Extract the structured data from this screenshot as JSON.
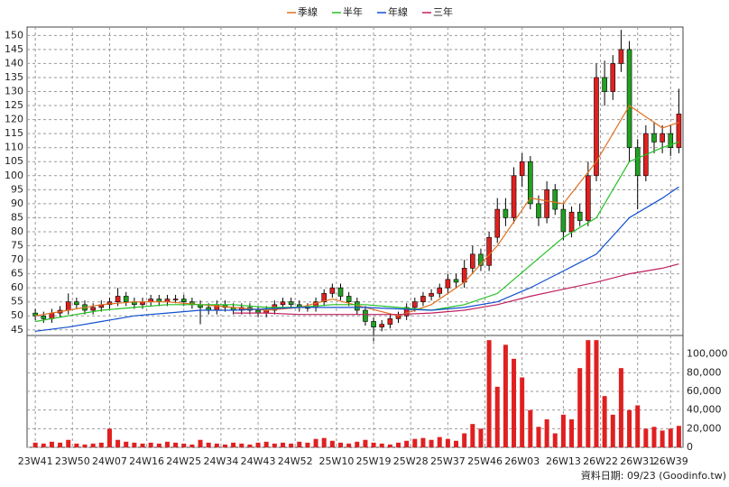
{
  "chart_data": [
    {
      "type": "candlestick",
      "up_color": "#e02020",
      "down_color": "#22a022",
      "ylim": [
        43,
        153
      ],
      "yticks": [
        45,
        50,
        55,
        60,
        65,
        70,
        75,
        80,
        85,
        90,
        95,
        100,
        105,
        110,
        115,
        120,
        125,
        130,
        135,
        140,
        145,
        150
      ],
      "grid": true,
      "legend": "top",
      "xlim": [
        -2,
        157
      ],
      "x": [
        0,
        2,
        4,
        6,
        8,
        10,
        12,
        14,
        16,
        18,
        20,
        22,
        24,
        26,
        28,
        30,
        32,
        34,
        36,
        38,
        40,
        42,
        44,
        46,
        48,
        50,
        52,
        54,
        56,
        58,
        60,
        62,
        64,
        66,
        68,
        70,
        72,
        74,
        76,
        78,
        80,
        82,
        84,
        86,
        88,
        90,
        92,
        94,
        96,
        98,
        100,
        102,
        104,
        106,
        108,
        110,
        112,
        114,
        116,
        118,
        120,
        122,
        124,
        126,
        128,
        130,
        132,
        134,
        136,
        138,
        140,
        142,
        144,
        146,
        148,
        150,
        152,
        154,
        156
      ],
      "open": [
        51,
        50,
        49,
        51,
        52,
        55,
        54,
        52,
        53,
        54,
        55,
        57,
        55,
        54,
        55,
        56,
        55,
        56,
        56,
        55,
        54,
        53,
        52,
        54,
        53,
        52,
        53,
        52,
        51,
        52,
        54,
        55,
        54,
        53,
        53,
        55,
        58,
        60,
        57,
        55,
        52,
        48,
        46,
        47,
        49,
        50,
        53,
        55,
        57,
        58,
        60,
        63,
        62,
        67,
        72,
        68,
        78,
        88,
        85,
        100,
        105,
        90,
        85,
        95,
        88,
        80,
        87,
        84,
        100,
        135,
        130,
        140,
        145,
        110,
        100,
        115,
        112,
        115,
        110
      ],
      "high": [
        52.5,
        51.5,
        52.5,
        53.5,
        58,
        56.5,
        55.5,
        54.5,
        55.5,
        56.5,
        60,
        58.5,
        56.5,
        56.5,
        57.5,
        57.5,
        57.5,
        57.5,
        57.5,
        56.5,
        55.5,
        54.5,
        55.5,
        55.5,
        54.5,
        54.5,
        54.5,
        53.5,
        53.5,
        55.5,
        56.5,
        56.5,
        55.5,
        54.5,
        56.5,
        59.5,
        61.5,
        61.5,
        58.5,
        56.5,
        53.5,
        49.5,
        48.5,
        50.5,
        51.5,
        54.5,
        56.5,
        58.5,
        59.5,
        61.5,
        65,
        65,
        70,
        75,
        74,
        80,
        92,
        92,
        103,
        108,
        107,
        93,
        98,
        97,
        90,
        89,
        90,
        105,
        140,
        141,
        143,
        152,
        148,
        113,
        118,
        119,
        118,
        118,
        131
      ],
      "low": [
        48.5,
        47.5,
        47.5,
        49.5,
        50.5,
        52.5,
        50.5,
        50.5,
        51.5,
        52.5,
        53.5,
        53.5,
        52.5,
        52.5,
        53.5,
        53.5,
        53.5,
        54.5,
        53.5,
        52.5,
        47,
        50.5,
        50.5,
        51.5,
        50.5,
        50.5,
        50.5,
        49.5,
        49.5,
        50.5,
        52.5,
        52.5,
        51.5,
        51.5,
        51.5,
        53.5,
        56.5,
        55.5,
        53.5,
        50.5,
        46.5,
        40,
        44.5,
        45.5,
        47.5,
        48.5,
        51.5,
        53.5,
        55.5,
        56.5,
        58,
        60,
        60,
        65,
        66,
        66,
        76,
        82,
        83,
        96,
        88,
        82,
        83,
        86,
        77,
        78,
        82,
        82,
        98,
        125,
        127,
        137,
        105,
        88,
        98,
        108,
        108,
        107,
        108
      ],
      "close": [
        50,
        49,
        51,
        52,
        55,
        54,
        52,
        53,
        54,
        55,
        57,
        55,
        54,
        55,
        56,
        55,
        56,
        56,
        55,
        54,
        53,
        52,
        54,
        53,
        52,
        53,
        52,
        51,
        52,
        54,
        55,
        54,
        53,
        53,
        55,
        58,
        60,
        57,
        55,
        52,
        48,
        46,
        47,
        49,
        50,
        53,
        55,
        57,
        58,
        60,
        63,
        62,
        67,
        72,
        68,
        78,
        88,
        85,
        100,
        105,
        90,
        85,
        95,
        88,
        80,
        87,
        84,
        100,
        135,
        130,
        140,
        145,
        110,
        100,
        115,
        112,
        115,
        110,
        122
      ],
      "series": [
        {
          "name": "季線",
          "color": "#e07020",
          "x": [
            0,
            8,
            16,
            24,
            32,
            40,
            48,
            56,
            64,
            72,
            80,
            88,
            96,
            104,
            112,
            120,
            128,
            136,
            144,
            152,
            156
          ],
          "values": [
            50,
            52,
            54,
            55,
            55,
            54,
            53,
            52,
            53,
            56,
            53,
            50,
            54,
            62,
            75,
            92,
            90,
            105,
            125,
            117,
            119
          ]
        },
        {
          "name": "半年",
          "color": "#22c022",
          "x": [
            0,
            8,
            16,
            24,
            32,
            40,
            48,
            56,
            64,
            72,
            80,
            88,
            96,
            104,
            112,
            120,
            128,
            136,
            144,
            152,
            156
          ],
          "values": [
            48,
            50,
            52,
            53,
            54,
            54,
            54,
            53,
            53,
            54,
            54,
            53,
            52,
            54,
            58,
            68,
            78,
            85,
            105,
            110,
            112
          ]
        },
        {
          "name": "年線",
          "color": "#1050d0",
          "x": [
            0,
            8,
            16,
            24,
            32,
            40,
            48,
            56,
            64,
            72,
            80,
            88,
            96,
            104,
            112,
            120,
            128,
            136,
            144,
            152,
            156
          ],
          "values": [
            44.5,
            46,
            48,
            50,
            51,
            52,
            52,
            52.5,
            53,
            53,
            53,
            52.5,
            52,
            53,
            55,
            60,
            66,
            72,
            85,
            92,
            96
          ]
        },
        {
          "name": "三年",
          "color": "#c02060",
          "x": [
            48,
            56,
            64,
            72,
            80,
            88,
            96,
            104,
            112,
            120,
            128,
            136,
            144,
            152,
            156
          ],
          "values": [
            51,
            51,
            50.5,
            50.5,
            50.5,
            50.5,
            51,
            52,
            54,
            57,
            59.5,
            62,
            65,
            67,
            68.5
          ]
        }
      ]
    },
    {
      "type": "bar",
      "color": "#e02020",
      "ylim": [
        0,
        120000
      ],
      "yticks": [
        0,
        {
          "value": 20000,
          "label": "20,000"
        },
        {
          "value": 40000,
          "label": "40,000"
        },
        {
          "value": 60000,
          "label": "60,000"
        },
        {
          "value": 80000,
          "label": "80,000"
        },
        {
          "value": 100000,
          "label": "100,000"
        }
      ],
      "grid": true,
      "xlim": [
        -2,
        157
      ],
      "xticks": [
        {
          "value": 0,
          "label": "23W41"
        },
        {
          "value": 9,
          "label": "23W50"
        },
        {
          "value": 18,
          "label": "24W07"
        },
        {
          "value": 27,
          "label": "24W16"
        },
        {
          "value": 36,
          "label": "24W25"
        },
        {
          "value": 45,
          "label": "24W34"
        },
        {
          "value": 54,
          "label": "24W43"
        },
        {
          "value": 63,
          "label": "24W52"
        },
        {
          "value": 73,
          "label": "25W10"
        },
        {
          "value": 82,
          "label": "25W19"
        },
        {
          "value": 91,
          "label": "25W28"
        },
        {
          "value": 100,
          "label": "25W37"
        },
        {
          "value": 109,
          "label": "25W46"
        },
        {
          "value": 118,
          "label": "26W03"
        },
        {
          "value": 128,
          "label": "26W13"
        },
        {
          "value": 137,
          "label": "26W22"
        },
        {
          "value": 146,
          "label": "26W31"
        },
        {
          "value": 154,
          "label": "26W39"
        }
      ],
      "x": [
        0,
        2,
        4,
        6,
        8,
        10,
        12,
        14,
        16,
        18,
        20,
        22,
        24,
        26,
        28,
        30,
        32,
        34,
        36,
        38,
        40,
        42,
        44,
        46,
        48,
        50,
        52,
        54,
        56,
        58,
        60,
        62,
        64,
        66,
        68,
        70,
        72,
        74,
        76,
        78,
        80,
        82,
        84,
        86,
        88,
        90,
        92,
        94,
        96,
        98,
        100,
        102,
        104,
        106,
        108,
        110,
        112,
        114,
        116,
        118,
        120,
        122,
        124,
        126,
        128,
        130,
        132,
        134,
        136,
        138,
        140,
        142,
        144,
        146,
        148,
        150,
        152,
        154,
        156
      ],
      "values": [
        5000,
        4000,
        6000,
        5000,
        8000,
        4000,
        3000,
        4000,
        5000,
        20000,
        8000,
        6000,
        5000,
        4000,
        5000,
        4000,
        6000,
        5000,
        4000,
        3000,
        8000,
        5000,
        4000,
        3000,
        5000,
        4000,
        3000,
        5000,
        6000,
        4000,
        5000,
        4000,
        6000,
        5000,
        9000,
        10000,
        7000,
        5000,
        4000,
        6000,
        8000,
        5000,
        4000,
        3000,
        5000,
        7000,
        9000,
        10000,
        8000,
        11000,
        9000,
        7000,
        15000,
        25000,
        20000,
        115000,
        65000,
        110000,
        95000,
        75000,
        40000,
        22000,
        30000,
        15000,
        35000,
        30000,
        85000,
        115000,
        115000,
        55000,
        35000,
        85000,
        40000,
        45000,
        20000,
        22000,
        18000,
        20000,
        23000
      ]
    }
  ],
  "source_note": "資料日期: 09/23 (Goodinfo.tw)"
}
